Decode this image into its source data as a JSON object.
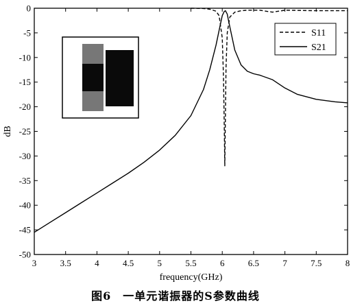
{
  "caption": "图6　一单元谐振器的S参数曲线",
  "colors": {
    "line": "#000000",
    "background": "#ffffff",
    "inset_light": "#777777",
    "inset_dark": "#0a0a0a"
  },
  "chart_data": {
    "type": "line",
    "xlabel": "frequency(GHz)",
    "ylabel": "dB",
    "xlim": [
      3,
      8
    ],
    "ylim": [
      -50,
      0
    ],
    "xticks": [
      "3",
      "3.5",
      "4",
      "4.5",
      "5",
      "5.5",
      "6",
      "6.5",
      "7",
      "7.5",
      "8"
    ],
    "yticks": [
      "0",
      "-5",
      "-10",
      "-15",
      "-20",
      "-25",
      "-30",
      "-35",
      "-40",
      "-45",
      "-50"
    ],
    "grid": false,
    "legend_position": "top-right",
    "inset_image": "resonator-unit-cell",
    "series": [
      {
        "name": "S11",
        "style": "dashed",
        "x": [
          5.5,
          5.7,
          5.8,
          5.9,
          5.95,
          6.0,
          6.02,
          6.03,
          6.04,
          6.05,
          6.06,
          6.08,
          6.12,
          6.2,
          6.3,
          6.4,
          6.5,
          6.6,
          6.8,
          7.0,
          7.5,
          8.0
        ],
        "y": [
          0,
          -0.05,
          -0.2,
          -0.6,
          -1.5,
          -6,
          -14,
          -22,
          -32,
          -22,
          -12,
          -5,
          -1.8,
          -0.8,
          -0.5,
          -0.4,
          -0.4,
          -0.4,
          -0.8,
          -0.4,
          -0.5,
          -0.5
        ]
      },
      {
        "name": "S21",
        "style": "solid",
        "x": [
          3.0,
          3.25,
          3.5,
          3.75,
          4.0,
          4.25,
          4.5,
          4.75,
          5.0,
          5.25,
          5.5,
          5.7,
          5.8,
          5.9,
          5.95,
          6.0,
          6.03,
          6.05,
          6.08,
          6.1,
          6.15,
          6.2,
          6.3,
          6.4,
          6.5,
          6.6,
          6.8,
          7.0,
          7.2,
          7.5,
          7.8,
          8.0
        ],
        "y": [
          -45.5,
          -43.5,
          -41.5,
          -39.5,
          -37.5,
          -35.5,
          -33.5,
          -31.3,
          -28.8,
          -25.8,
          -21.8,
          -16.5,
          -12.5,
          -7.5,
          -4.5,
          -1.5,
          -0.7,
          -0.5,
          -1.2,
          -2.5,
          -5.5,
          -8.5,
          -11.5,
          -12.8,
          -13.3,
          -13.6,
          -14.5,
          -16.2,
          -17.5,
          -18.5,
          -19.0,
          -19.2
        ]
      }
    ]
  }
}
